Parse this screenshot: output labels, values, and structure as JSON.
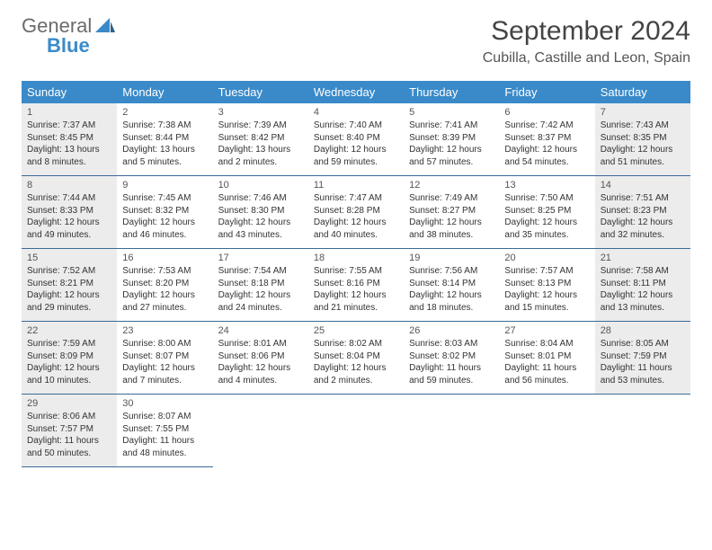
{
  "brand": {
    "line1": "General",
    "line2": "Blue",
    "accent": "#3a8ac9"
  },
  "title": "September 2024",
  "location": "Cubilla, Castille and Leon, Spain",
  "weekdays": [
    "Sunday",
    "Monday",
    "Tuesday",
    "Wednesday",
    "Thursday",
    "Friday",
    "Saturday"
  ],
  "colors": {
    "header_bg": "#3a8ac9",
    "header_text": "#ffffff",
    "border": "#3a6a9a",
    "weekend_bg": "#ececec",
    "text": "#333333"
  },
  "days": [
    {
      "n": "1",
      "sr": "Sunrise: 7:37 AM",
      "ss": "Sunset: 8:45 PM",
      "dl": "Daylight: 13 hours and 8 minutes.",
      "w": true
    },
    {
      "n": "2",
      "sr": "Sunrise: 7:38 AM",
      "ss": "Sunset: 8:44 PM",
      "dl": "Daylight: 13 hours and 5 minutes."
    },
    {
      "n": "3",
      "sr": "Sunrise: 7:39 AM",
      "ss": "Sunset: 8:42 PM",
      "dl": "Daylight: 13 hours and 2 minutes."
    },
    {
      "n": "4",
      "sr": "Sunrise: 7:40 AM",
      "ss": "Sunset: 8:40 PM",
      "dl": "Daylight: 12 hours and 59 minutes."
    },
    {
      "n": "5",
      "sr": "Sunrise: 7:41 AM",
      "ss": "Sunset: 8:39 PM",
      "dl": "Daylight: 12 hours and 57 minutes."
    },
    {
      "n": "6",
      "sr": "Sunrise: 7:42 AM",
      "ss": "Sunset: 8:37 PM",
      "dl": "Daylight: 12 hours and 54 minutes."
    },
    {
      "n": "7",
      "sr": "Sunrise: 7:43 AM",
      "ss": "Sunset: 8:35 PM",
      "dl": "Daylight: 12 hours and 51 minutes.",
      "w": true
    },
    {
      "n": "8",
      "sr": "Sunrise: 7:44 AM",
      "ss": "Sunset: 8:33 PM",
      "dl": "Daylight: 12 hours and 49 minutes.",
      "w": true
    },
    {
      "n": "9",
      "sr": "Sunrise: 7:45 AM",
      "ss": "Sunset: 8:32 PM",
      "dl": "Daylight: 12 hours and 46 minutes."
    },
    {
      "n": "10",
      "sr": "Sunrise: 7:46 AM",
      "ss": "Sunset: 8:30 PM",
      "dl": "Daylight: 12 hours and 43 minutes."
    },
    {
      "n": "11",
      "sr": "Sunrise: 7:47 AM",
      "ss": "Sunset: 8:28 PM",
      "dl": "Daylight: 12 hours and 40 minutes."
    },
    {
      "n": "12",
      "sr": "Sunrise: 7:49 AM",
      "ss": "Sunset: 8:27 PM",
      "dl": "Daylight: 12 hours and 38 minutes."
    },
    {
      "n": "13",
      "sr": "Sunrise: 7:50 AM",
      "ss": "Sunset: 8:25 PM",
      "dl": "Daylight: 12 hours and 35 minutes."
    },
    {
      "n": "14",
      "sr": "Sunrise: 7:51 AM",
      "ss": "Sunset: 8:23 PM",
      "dl": "Daylight: 12 hours and 32 minutes.",
      "w": true
    },
    {
      "n": "15",
      "sr": "Sunrise: 7:52 AM",
      "ss": "Sunset: 8:21 PM",
      "dl": "Daylight: 12 hours and 29 minutes.",
      "w": true
    },
    {
      "n": "16",
      "sr": "Sunrise: 7:53 AM",
      "ss": "Sunset: 8:20 PM",
      "dl": "Daylight: 12 hours and 27 minutes."
    },
    {
      "n": "17",
      "sr": "Sunrise: 7:54 AM",
      "ss": "Sunset: 8:18 PM",
      "dl": "Daylight: 12 hours and 24 minutes."
    },
    {
      "n": "18",
      "sr": "Sunrise: 7:55 AM",
      "ss": "Sunset: 8:16 PM",
      "dl": "Daylight: 12 hours and 21 minutes."
    },
    {
      "n": "19",
      "sr": "Sunrise: 7:56 AM",
      "ss": "Sunset: 8:14 PM",
      "dl": "Daylight: 12 hours and 18 minutes."
    },
    {
      "n": "20",
      "sr": "Sunrise: 7:57 AM",
      "ss": "Sunset: 8:13 PM",
      "dl": "Daylight: 12 hours and 15 minutes."
    },
    {
      "n": "21",
      "sr": "Sunrise: 7:58 AM",
      "ss": "Sunset: 8:11 PM",
      "dl": "Daylight: 12 hours and 13 minutes.",
      "w": true
    },
    {
      "n": "22",
      "sr": "Sunrise: 7:59 AM",
      "ss": "Sunset: 8:09 PM",
      "dl": "Daylight: 12 hours and 10 minutes.",
      "w": true
    },
    {
      "n": "23",
      "sr": "Sunrise: 8:00 AM",
      "ss": "Sunset: 8:07 PM",
      "dl": "Daylight: 12 hours and 7 minutes."
    },
    {
      "n": "24",
      "sr": "Sunrise: 8:01 AM",
      "ss": "Sunset: 8:06 PM",
      "dl": "Daylight: 12 hours and 4 minutes."
    },
    {
      "n": "25",
      "sr": "Sunrise: 8:02 AM",
      "ss": "Sunset: 8:04 PM",
      "dl": "Daylight: 12 hours and 2 minutes."
    },
    {
      "n": "26",
      "sr": "Sunrise: 8:03 AM",
      "ss": "Sunset: 8:02 PM",
      "dl": "Daylight: 11 hours and 59 minutes."
    },
    {
      "n": "27",
      "sr": "Sunrise: 8:04 AM",
      "ss": "Sunset: 8:01 PM",
      "dl": "Daylight: 11 hours and 56 minutes."
    },
    {
      "n": "28",
      "sr": "Sunrise: 8:05 AM",
      "ss": "Sunset: 7:59 PM",
      "dl": "Daylight: 11 hours and 53 minutes.",
      "w": true
    },
    {
      "n": "29",
      "sr": "Sunrise: 8:06 AM",
      "ss": "Sunset: 7:57 PM",
      "dl": "Daylight: 11 hours and 50 minutes.",
      "w": true
    },
    {
      "n": "30",
      "sr": "Sunrise: 8:07 AM",
      "ss": "Sunset: 7:55 PM",
      "dl": "Daylight: 11 hours and 48 minutes."
    }
  ]
}
